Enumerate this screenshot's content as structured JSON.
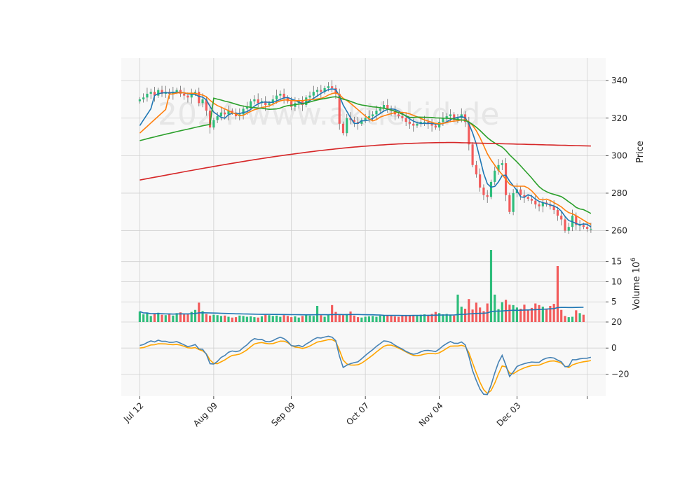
{
  "watermark": "2024 www.aktiekid.de",
  "colors": {
    "up": "#2ebd7b",
    "down": "#f25b5b",
    "ma_blue": "#1f77b4",
    "ma_orange": "#ff7f0e",
    "ma_green": "#2ca02c",
    "ma_red": "#d62728",
    "vol_avg": "#1f77b4",
    "osc_blue": "#4682b4",
    "osc_orange": "#ffa500",
    "panel_bg": "#f8f8f8",
    "grid": "#d0d0d0"
  },
  "chart_data": [
    {
      "type": "candlestick",
      "panel": "price",
      "ylabel": "Price",
      "ylim": [
        252,
        352
      ],
      "yticks": [
        260,
        280,
        300,
        320,
        340
      ],
      "x_range": [
        -5,
        126
      ],
      "x_ticks": [
        {
          "index": 0,
          "label": "Jul 12"
        },
        {
          "index": 20,
          "label": "Aug 09"
        },
        {
          "index": 41,
          "label": "Sep 09"
        },
        {
          "index": 61,
          "label": "Oct 07"
        },
        {
          "index": 81,
          "label": "Nov 04"
        },
        {
          "index": 102,
          "label": "Dec 03"
        },
        {
          "index": 121,
          "label": ""
        }
      ],
      "close": [
        330,
        331,
        333,
        334,
        332,
        335,
        333,
        334,
        333,
        334,
        335,
        333,
        332,
        331,
        333,
        334,
        328,
        330,
        324,
        315,
        319,
        321,
        323,
        322,
        324,
        323,
        321,
        322,
        325,
        326,
        329,
        330,
        328,
        329,
        327,
        328,
        330,
        332,
        333,
        331,
        329,
        326,
        328,
        329,
        327,
        331,
        332,
        334,
        335,
        334,
        336,
        337,
        336,
        333,
        317,
        312,
        320,
        319,
        318,
        317,
        319,
        320,
        321,
        322,
        324,
        325,
        327,
        325,
        324,
        322,
        321,
        320,
        318,
        317,
        316,
        317,
        318,
        318,
        317,
        316,
        315,
        318,
        320,
        321,
        322,
        319,
        320,
        322,
        318,
        306,
        295,
        290,
        283,
        279,
        278,
        286,
        292,
        295,
        296,
        279,
        270,
        280,
        282,
        279,
        278,
        277,
        276,
        274,
        273,
        275,
        274,
        273,
        271,
        268,
        266,
        260,
        262,
        268,
        263,
        263,
        262,
        261,
        261
      ],
      "volume_m": [
        2.6,
        1.9,
        2.2,
        1.5,
        2.1,
        2.3,
        1.8,
        1.7,
        2.0,
        1.6,
        2.2,
        2.4,
        1.9,
        2.1,
        2.5,
        3.0,
        4.8,
        2.7,
        2.0,
        1.6,
        1.8,
        1.7,
        1.5,
        1.6,
        1.3,
        1.1,
        1.2,
        1.6,
        1.5,
        1.3,
        1.4,
        1.2,
        1.1,
        1.4,
        1.8,
        1.7,
        1.5,
        1.6,
        1.3,
        1.7,
        1.5,
        1.2,
        1.4,
        1.1,
        1.5,
        1.8,
        1.6,
        1.5,
        4.0,
        1.7,
        1.3,
        1.8,
        4.2,
        2.5,
        1.9,
        1.7,
        2.0,
        2.6,
        1.6,
        1.2,
        1.1,
        1.3,
        1.4,
        1.5,
        1.3,
        1.6,
        1.7,
        1.6,
        1.5,
        1.4,
        1.3,
        1.5,
        1.5,
        1.7,
        1.6,
        1.5,
        1.8,
        1.9,
        1.7,
        2.0,
        2.5,
        2.2,
        1.9,
        2.0,
        1.8,
        1.6,
        6.8,
        3.8,
        3.3,
        5.7,
        3.1,
        4.8,
        3.6,
        2.7,
        4.6,
        17.9,
        6.8,
        3.2,
        4.9,
        5.5,
        4.3,
        4.2,
        3.6,
        3.3,
        4.3,
        3.1,
        3.5,
        4.6,
        4.2,
        3.8,
        3.2,
        4.0,
        4.5,
        13.9,
        3.0,
        1.5,
        1.2,
        1.3,
        2.9,
        2.2,
        1.8
      ],
      "moving_averages": [
        {
          "color_key": "ma_blue",
          "points": [
            [
              0,
              316
            ],
            [
              4,
              322
            ],
            [
              8,
              329
            ],
            [
              12,
              333
            ],
            [
              16,
              334
            ],
            [
              20,
              333
            ],
            [
              24,
              331
            ],
            [
              28,
              326
            ],
            [
              32,
              323
            ],
            [
              36,
              322
            ],
            [
              40,
              323
            ],
            [
              44,
              324
            ],
            [
              48,
              326
            ],
            [
              52,
              330
            ],
            [
              56,
              333
            ],
            [
              60,
              332
            ],
            [
              64,
              327
            ],
            [
              68,
              323
            ],
            [
              72,
              322
            ],
            [
              76,
              323
            ],
            [
              80,
              323
            ],
            [
              84,
              322
            ],
            [
              88,
              319
            ],
            [
              92,
              316
            ],
            [
              96,
              315
            ],
            [
              100,
              316
            ],
            [
              104,
              318
            ],
            [
              106,
              320
            ],
            [
              108,
              318
            ],
            [
              110,
              310
            ],
            [
              112,
              300
            ],
            [
              114,
              292
            ],
            [
              116,
              287
            ],
            [
              118,
              285
            ],
            [
              120,
              285
            ],
            [
              122,
              283
            ],
            [
              124,
              279
            ],
            [
              126,
              276
            ],
            [
              128,
              274
            ],
            [
              130,
              271
            ],
            [
              132,
              268
            ],
            [
              134,
              266
            ],
            [
              136,
              264
            ],
            [
              138,
              262
            ]
          ]
        },
        {
          "color_key": "ma_orange",
          "points": [
            [
              0,
              312
            ]
          ]
        },
        {
          "color_key": "ma_green",
          "points": [
            [
              0,
              308
            ]
          ]
        },
        {
          "color_key": "ma_red",
          "points": [
            [
              0,
              287
            ]
          ]
        }
      ]
    },
    {
      "type": "bar",
      "panel": "volume",
      "ylabel": "Volume  10^6",
      "ylim": [
        0,
        17.9
      ],
      "yticks": [
        5,
        10,
        15
      ]
    },
    {
      "type": "line",
      "panel": "oscillator",
      "ylim": [
        -37,
        20
      ],
      "yticks": [
        20,
        0,
        -20
      ]
    }
  ]
}
